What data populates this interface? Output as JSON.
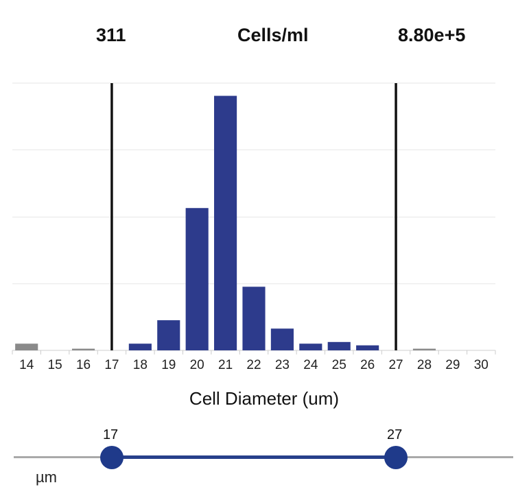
{
  "header": {
    "count": "311",
    "unit_label": "Cells/ml",
    "concentration": "8.80e+5"
  },
  "chart_data": {
    "type": "bar",
    "xlabel": "Cell Diameter (um)",
    "ylabel": "",
    "categories": [
      "14",
      "15",
      "16",
      "17",
      "18",
      "19",
      "20",
      "21",
      "22",
      "23",
      "24",
      "25",
      "26",
      "27",
      "28",
      "29",
      "30"
    ],
    "values": [
      2.0,
      0,
      0.5,
      0,
      2.0,
      9.0,
      42.5,
      76.0,
      19.0,
      6.5,
      2.0,
      2.5,
      1.5,
      0,
      0.5,
      0,
      0
    ],
    "ylim": [
      0,
      80
    ],
    "grid": true,
    "gate_lines": [
      17,
      27
    ],
    "series_colors": {
      "in_gate": "#2d3b8c",
      "out_of_gate": "#8a8a8a"
    }
  },
  "slider": {
    "min_label": "17",
    "max_label": "27",
    "min_value": 17,
    "max_value": 27,
    "axis_min": 14,
    "axis_max": 30,
    "unit": "µm"
  }
}
